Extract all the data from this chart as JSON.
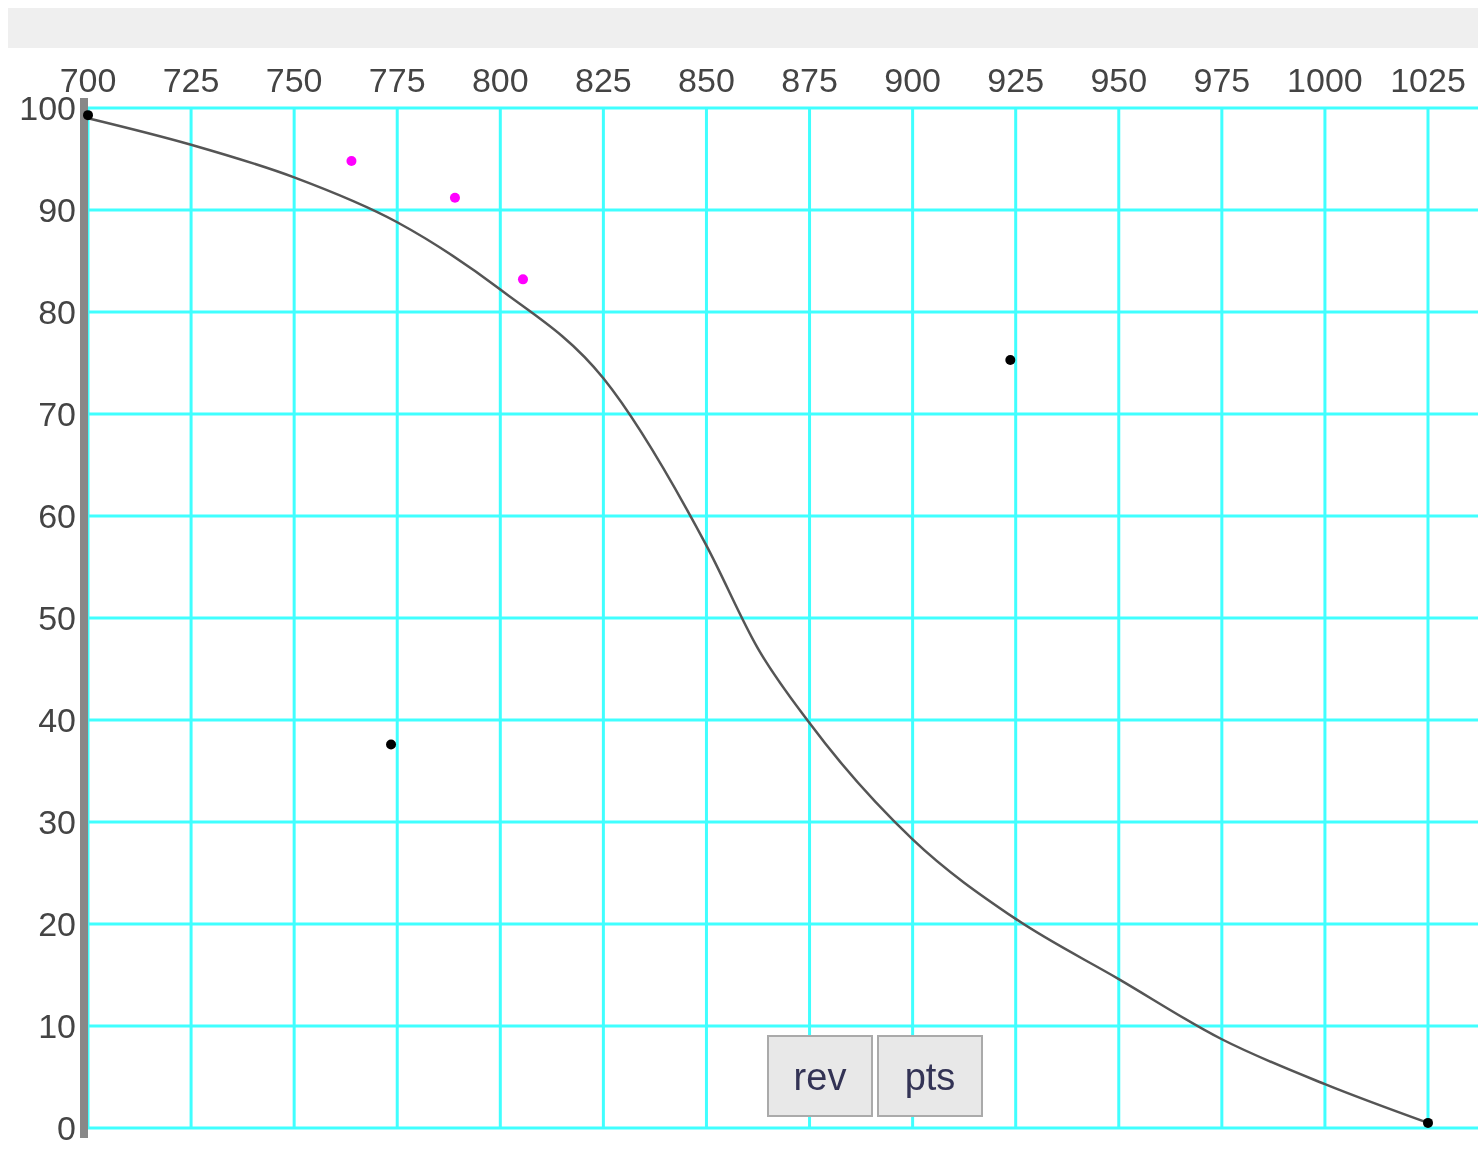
{
  "chart_data": {
    "type": "line",
    "xlim": [
      700,
      1025
    ],
    "ylim": [
      0,
      100
    ],
    "xticks": [
      700,
      725,
      750,
      775,
      800,
      825,
      850,
      875,
      900,
      925,
      950,
      975,
      1000,
      1025
    ],
    "yticks": [
      0,
      10,
      20,
      30,
      40,
      50,
      60,
      70,
      80,
      90,
      100
    ],
    "grid": true,
    "series": [
      {
        "color": "#555555",
        "x": [
          700,
          725,
          750,
          775,
          800,
          825,
          850,
          862.5,
          875,
          900,
          925,
          950,
          975,
          1000,
          1025
        ],
        "values": [
          99,
          96.4,
          93.2,
          88.8,
          82.2,
          73.5,
          57.1,
          47,
          39.7,
          28.3,
          20.5,
          14.6,
          8.7,
          4.3,
          0.5
        ]
      },
      {
        "type": "scatter",
        "color": "#000000",
        "marker": "circle",
        "x": [
          700,
          773.5,
          923.7,
          1025
        ],
        "values": [
          99.3,
          37.6,
          75.3,
          0.5
        ]
      },
      {
        "type": "scatter",
        "color": "#ff00ff",
        "marker": "circle",
        "x": [
          763.9,
          789,
          805.5
        ],
        "values": [
          94.8,
          91.2,
          83.2
        ]
      }
    ],
    "annotations": [
      "rev",
      "pts"
    ]
  }
}
